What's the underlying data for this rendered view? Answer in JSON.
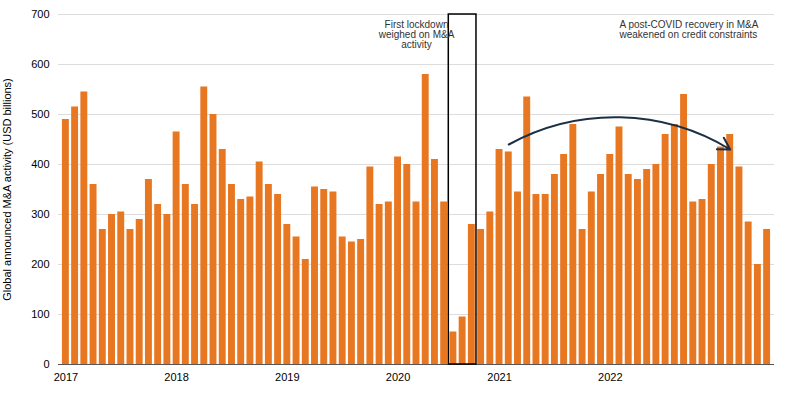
{
  "chart_data": {
    "type": "bar",
    "ylabel": "Global announced M&A activity (USD billions)",
    "categories": [
      "2017",
      null,
      null,
      null,
      null,
      null,
      null,
      null,
      null,
      null,
      null,
      null,
      "2018",
      null,
      null,
      null,
      null,
      null,
      null,
      null,
      null,
      null,
      null,
      null,
      "2019",
      null,
      null,
      null,
      null,
      null,
      null,
      null,
      null,
      null,
      null,
      null,
      "2020",
      null,
      null,
      null,
      null,
      null,
      null,
      null,
      null,
      null,
      null,
      "2021",
      null,
      null,
      null,
      null,
      null,
      null,
      null,
      null,
      null,
      null,
      null,
      "2022",
      null,
      null,
      null,
      null,
      null,
      null,
      null,
      null,
      null,
      null,
      null,
      null,
      null,
      null,
      null,
      null,
      null
    ],
    "values": [
      490,
      515,
      545,
      360,
      270,
      300,
      305,
      270,
      290,
      370,
      320,
      300,
      465,
      360,
      320,
      555,
      500,
      430,
      360,
      330,
      335,
      405,
      360,
      340,
      280,
      255,
      210,
      355,
      350,
      345,
      255,
      245,
      250,
      395,
      320,
      325,
      415,
      400,
      325,
      580,
      410,
      325,
      65,
      95,
      280,
      270,
      305,
      430,
      425,
      345,
      535,
      340,
      340,
      380,
      420,
      480,
      270,
      345,
      380,
      420,
      475,
      380,
      370,
      390,
      400,
      460,
      480,
      540,
      325,
      330,
      400,
      435,
      460,
      395,
      285,
      200,
      270
    ],
    "color": "#E87722",
    "ylim": [
      0,
      700
    ],
    "yticks": [
      0,
      100,
      200,
      300,
      400,
      500,
      600,
      700
    ],
    "grid": true,
    "annotations": [
      "First lockdown\nweighed on M&A\nactivity",
      "A post-COVID recovery in M&A\nweakened on credit constraints"
    ]
  }
}
